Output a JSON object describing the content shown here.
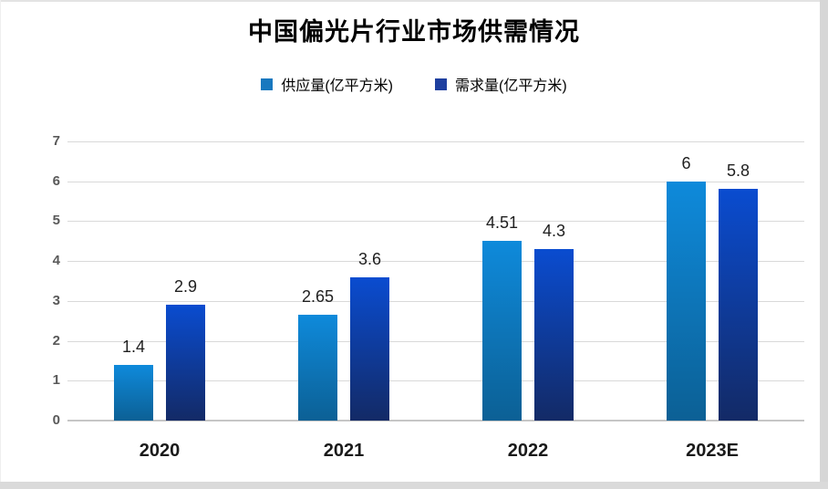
{
  "title": "中国偏光片行业市场供需情况",
  "chart_data": {
    "type": "bar",
    "title": "中国偏光片行业市场供需情况",
    "categories": [
      "2020",
      "2021",
      "2022",
      "2023E"
    ],
    "series": [
      {
        "name": "供应量(亿平方米)",
        "values": [
          1.4,
          2.65,
          4.51,
          6
        ],
        "value_labels": [
          "1.4",
          "2.65",
          "4.51",
          "6"
        ],
        "bar_color_top": "#0e8adb",
        "bar_color_bottom": "#0c6095",
        "legend_color": "#1878bf"
      },
      {
        "name": "需求量(亿平方米)",
        "values": [
          2.9,
          3.6,
          4.3,
          5.8
        ],
        "value_labels": [
          "2.9",
          "3.6",
          "4.3",
          "5.8"
        ],
        "bar_color_top": "#0a4cd0",
        "bar_color_bottom": "#132a66",
        "legend_color": "#1e3f9f"
      }
    ],
    "xlabel": "",
    "ylabel": "",
    "ylim": [
      0,
      7
    ],
    "yticks": [
      0,
      1,
      2,
      3,
      4,
      5,
      6,
      7
    ],
    "grid": true,
    "legend_position": "top",
    "gridline_color": "#d9d9d9",
    "axis_tick_color": "#595959",
    "value_label_color": "#1f1f1f"
  }
}
